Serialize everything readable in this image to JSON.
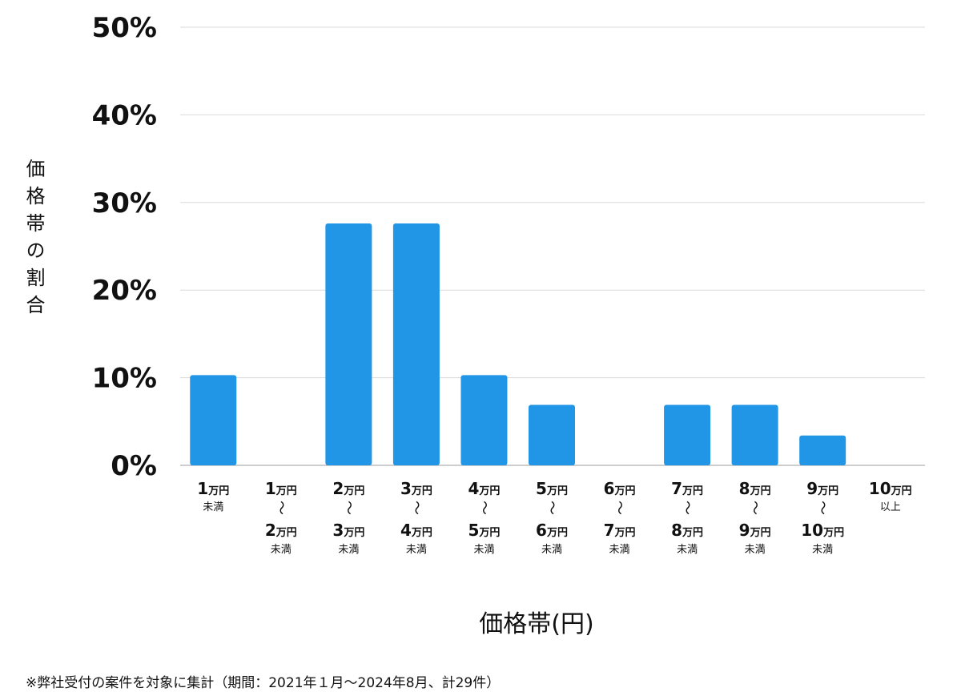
{
  "chart_data": {
    "type": "bar",
    "ylabel": "価格帯の割合",
    "xlabel": "価格帯(円)",
    "ylim": [
      0,
      50
    ],
    "yticks": [
      "0%",
      "10%",
      "20%",
      "30%",
      "40%",
      "50%"
    ],
    "ytick_values": [
      0,
      10,
      20,
      30,
      40,
      50
    ],
    "grid": true,
    "color": "#2196e6",
    "categories": [
      {
        "from": "1",
        "unit_from": "万円",
        "to": "",
        "unit_to": "",
        "note": "未満"
      },
      {
        "from": "1",
        "unit_from": "万円",
        "to": "2",
        "unit_to": "万円",
        "note": "未満"
      },
      {
        "from": "2",
        "unit_from": "万円",
        "to": "3",
        "unit_to": "万円",
        "note": "未満"
      },
      {
        "from": "3",
        "unit_from": "万円",
        "to": "4",
        "unit_to": "万円",
        "note": "未満"
      },
      {
        "from": "4",
        "unit_from": "万円",
        "to": "5",
        "unit_to": "万円",
        "note": "未満"
      },
      {
        "from": "5",
        "unit_from": "万円",
        "to": "6",
        "unit_to": "万円",
        "note": "未満"
      },
      {
        "from": "6",
        "unit_from": "万円",
        "to": "7",
        "unit_to": "万円",
        "note": "未満"
      },
      {
        "from": "7",
        "unit_from": "万円",
        "to": "8",
        "unit_to": "万円",
        "note": "未満"
      },
      {
        "from": "8",
        "unit_from": "万円",
        "to": "9",
        "unit_to": "万円",
        "note": "未満"
      },
      {
        "from": "9",
        "unit_from": "万円",
        "to": "10",
        "unit_to": "万円",
        "note": "未満"
      },
      {
        "from": "10",
        "unit_from": "万円",
        "to": "",
        "unit_to": "",
        "note": "以上"
      }
    ],
    "tilde": "〜",
    "values": [
      10.3,
      0,
      27.6,
      27.6,
      10.3,
      6.9,
      0,
      6.9,
      6.9,
      3.4,
      0
    ]
  },
  "footnote": "※弊社受付の案件を対象に集計（期間：2021年１月〜2024年8月、計29件）"
}
